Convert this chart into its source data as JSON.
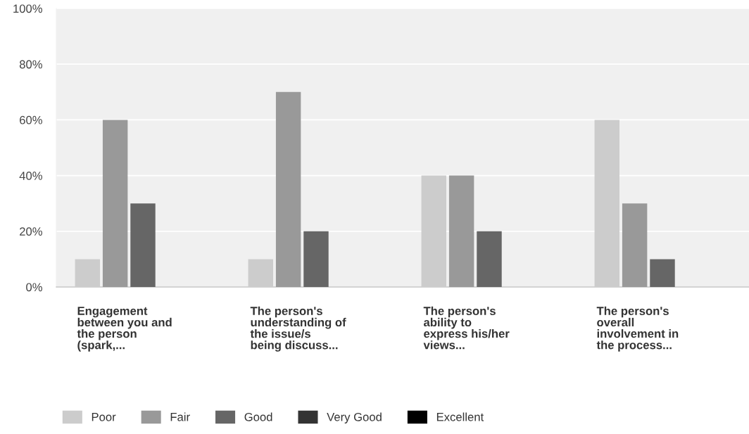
{
  "chart_data": {
    "type": "bar",
    "categories": [
      "Engagement\nbetween you and\nthe person\n(spark,...",
      "The person's\nunderstanding of\nthe issue/s\nbeing discuss...",
      "The person's\nability to\nexpress his/her\nviews...",
      "The person's\noverall\ninvolvement in\nthe process..."
    ],
    "series": [
      {
        "name": "Poor",
        "color": "#cccccc",
        "values": [
          10,
          10,
          40,
          60
        ]
      },
      {
        "name": "Fair",
        "color": "#999999",
        "values": [
          60,
          70,
          40,
          30
        ]
      },
      {
        "name": "Good",
        "color": "#666666",
        "values": [
          30,
          20,
          20,
          10
        ]
      },
      {
        "name": "Very Good",
        "color": "#333333",
        "values": [
          0,
          0,
          0,
          0
        ]
      },
      {
        "name": "Excellent",
        "color": "#000000",
        "values": [
          0,
          0,
          0,
          0
        ]
      }
    ],
    "ylim": [
      0,
      100
    ],
    "yticks": [
      {
        "value": 0,
        "label": "0%"
      },
      {
        "value": 20,
        "label": "20%"
      },
      {
        "value": 40,
        "label": "40%"
      },
      {
        "value": 60,
        "label": "60%"
      },
      {
        "value": 80,
        "label": "80%"
      },
      {
        "value": 100,
        "label": "100%"
      }
    ],
    "grid": "y",
    "legend": "bottom"
  }
}
